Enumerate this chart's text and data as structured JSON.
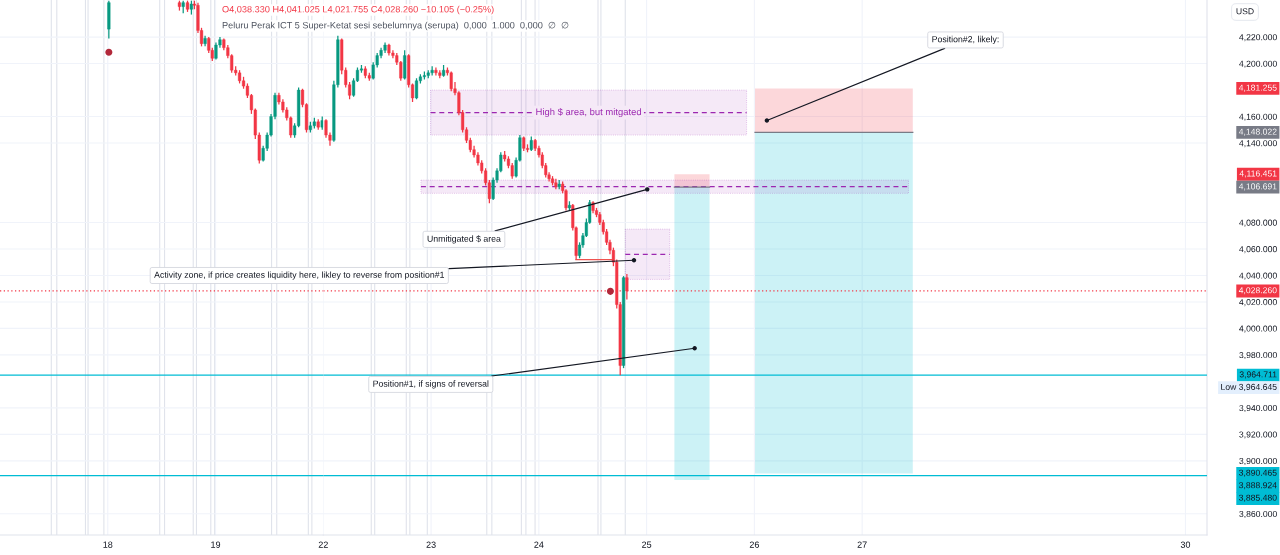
{
  "chart_data": [
    {
      "type": "candlestick",
      "title": "O4,038.330 H4,041.025 L4,021.755 C4,028.260 −10.105 (−0.25%)",
      "subtitle": "Peluru Perak ICT 5 Super-Ketat sesi sebelumnya (serupa)  0,000  1.000  0,000  ∅  ∅",
      "x": [
        18.01,
        18.665,
        18.7,
        18.74,
        18.776,
        18.804,
        18.837,
        18.87,
        18.903,
        18.937,
        18.97,
        19.004,
        19.041,
        19.077,
        19.114,
        19.15,
        19.187,
        19.223,
        19.26,
        19.296,
        19.333,
        19.369,
        19.406,
        19.442,
        19.479,
        19.515,
        19.552,
        19.588,
        19.625,
        19.661,
        19.698,
        19.734,
        19.771,
        19.807,
        19.844,
        19.88,
        19.917,
        19.953,
        19.99
      ],
      "ohlc": [
        [
          4226,
          4247.5,
          4219,
          4246
        ],
        [
          4246,
          4247.5,
          4240,
          4243
        ],
        [
          4243,
          4247.5,
          4238,
          4246
        ],
        [
          4246,
          4247.5,
          4239,
          4241
        ],
        [
          4241,
          4247.5,
          4237,
          4245
        ],
        [
          4245,
          4247.5,
          4241,
          4244
        ],
        [
          4244,
          4246,
          4223,
          4225
        ],
        [
          4225,
          4227,
          4213,
          4215
        ],
        [
          4215,
          4221,
          4213,
          4219
        ],
        [
          4219,
          4220,
          4208,
          4210
        ],
        [
          4210,
          4212,
          4202,
          4204
        ],
        [
          4204,
          4216,
          4203,
          4214
        ],
        [
          4214,
          4220,
          4212,
          4218
        ],
        [
          4218,
          4219,
          4210,
          4212
        ],
        [
          4212,
          4214,
          4204,
          4206
        ],
        [
          4206,
          4207,
          4193,
          4195
        ],
        [
          4195,
          4198,
          4191,
          4193
        ],
        [
          4193,
          4195,
          4185,
          4187
        ],
        [
          4187,
          4190,
          4181,
          4183
        ],
        [
          4183,
          4185,
          4174,
          4176
        ],
        [
          4176,
          4177,
          4162,
          4165
        ],
        [
          4165,
          4166,
          4143,
          4146
        ],
        [
          4146,
          4148,
          4124.5,
          4127
        ],
        [
          4127,
          4138,
          4126,
          4136
        ],
        [
          4136,
          4148,
          4134,
          4146
        ],
        [
          4146,
          4162,
          4145,
          4160
        ],
        [
          4160,
          4178,
          4158,
          4176
        ],
        [
          4176,
          4178,
          4169,
          4171
        ],
        [
          4171,
          4173,
          4163,
          4165
        ],
        [
          4165,
          4167,
          4157,
          4159
        ],
        [
          4159,
          4160,
          4144,
          4146
        ],
        [
          4146,
          4155,
          4144,
          4153
        ],
        [
          4153,
          4182,
          4152,
          4180
        ],
        [
          4180,
          4181,
          4167,
          4169
        ],
        [
          4169,
          4170,
          4148,
          4150
        ],
        [
          4150,
          4156,
          4148,
          4153
        ],
        [
          4153,
          4159,
          4151,
          4156
        ],
        [
          4156,
          4158,
          4150,
          4152
        ],
        [
          4152,
          4160,
          4150,
          4157
        ]
      ],
      "xlim": [
        17.0,
        20.0
      ],
      "xticks": [
        18,
        19
      ],
      "ylim": [
        3844,
        4248
      ],
      "yticks": [
        {
          "value": 4220,
          "label": null
        },
        {
          "value": 4200,
          "label": null
        },
        {
          "value": 4160,
          "label": null
        },
        {
          "value": 4140,
          "label": null
        },
        {
          "value": 4080,
          "label": null
        },
        {
          "value": 4060,
          "label": null
        },
        {
          "value": 4040,
          "label": null
        },
        {
          "value": 4020,
          "label": null
        },
        {
          "value": 4000,
          "label": null
        },
        {
          "value": 3980,
          "label": null
        },
        {
          "value": 3940,
          "label": null
        },
        {
          "value": 3920,
          "label": null
        },
        {
          "value": 3900,
          "label": null
        },
        {
          "value": 3860,
          "label": null
        }
      ],
      "tick_labels": "x",
      "grid": true,
      "series": [
        {
          "type": "scatter",
          "x": [
            18.01
          ],
          "values": [
            4208.5
          ],
          "color": "#b2283a",
          "marker": "circle"
        }
      ],
      "ref_lines": [
        {
          "axis": "y",
          "value": 4028.26,
          "color": "#f23645",
          "line_style": "dotted"
        },
        {
          "axis": "y",
          "value": 3964.711,
          "color": "#00bcd4",
          "line_style": "solid"
        },
        {
          "axis": "y",
          "value": 3888.924,
          "color": "#00bcd4",
          "line_style": "solid"
        },
        {
          "axis": "x",
          "value": 17.476,
          "color": "#e0e3eb"
        },
        {
          "axis": "x",
          "value": 17.527,
          "color": "#e0e3eb"
        },
        {
          "axis": "x",
          "value": 17.793,
          "color": "#e0e3eb"
        },
        {
          "axis": "x",
          "value": 17.817,
          "color": "#e0e3eb"
        },
        {
          "axis": "x",
          "value": 17.964,
          "color": "#e0e3eb"
        },
        {
          "axis": "x",
          "value": 18.482,
          "color": "#e0e3eb"
        },
        {
          "axis": "x",
          "value": 18.527,
          "color": "#e0e3eb"
        },
        {
          "axis": "x",
          "value": 18.793,
          "color": "#e0e3eb"
        },
        {
          "axis": "x",
          "value": 18.823,
          "color": "#e0e3eb"
        },
        {
          "axis": "x",
          "value": 18.956,
          "color": "#e0e3eb"
        },
        {
          "axis": "x",
          "value": 18.992,
          "color": "#e0e3eb"
        },
        {
          "axis": "x",
          "value": 19.52,
          "color": "#e0e3eb"
        },
        {
          "axis": "x",
          "value": 19.568,
          "color": "#e0e3eb"
        },
        {
          "axis": "x",
          "value": 19.861,
          "color": "#e0e3eb"
        },
        {
          "axis": "x",
          "value": 19.894,
          "color": "#e0e3eb"
        }
      ]
    },
    {
      "type": "candlestick",
      "x": [
        22.025,
        22.062,
        22.098,
        22.135,
        22.171,
        22.208,
        22.244,
        22.281,
        22.317,
        22.354,
        22.39,
        22.427,
        22.463,
        22.5,
        22.536,
        22.573,
        22.609,
        22.646,
        22.682,
        22.719,
        22.755,
        22.792,
        22.828,
        22.865,
        22.901,
        22.938,
        22.974,
        23.01,
        23.045,
        23.081,
        23.116,
        23.152,
        23.187,
        23.222,
        23.258,
        23.293,
        23.329,
        23.364,
        23.399,
        23.435,
        23.47,
        23.506,
        23.541,
        23.576,
        23.612,
        23.647,
        23.683,
        23.718,
        23.753,
        23.789,
        23.824,
        23.86,
        23.895,
        23.93,
        23.966,
        24.001,
        24.032,
        24.064,
        24.095,
        24.127,
        24.158,
        24.189,
        24.221,
        24.252,
        24.284,
        24.315,
        24.346,
        24.378,
        24.409,
        24.441,
        24.472,
        24.503,
        24.535,
        24.566,
        24.598,
        24.629,
        24.66,
        24.692,
        24.723,
        24.755,
        24.786,
        24.817
      ],
      "ohlc": [
        [
          4157,
          4158,
          4144,
          4146
        ],
        [
          4146,
          4148,
          4138,
          4142
        ],
        [
          4142,
          4187,
          4141,
          4184
        ],
        [
          4184,
          4221,
          4182,
          4218
        ],
        [
          4218,
          4219,
          4192,
          4195
        ],
        [
          4195,
          4197,
          4182,
          4184
        ],
        [
          4184,
          4186,
          4173,
          4176
        ],
        [
          4176,
          4189,
          4175,
          4187
        ],
        [
          4187,
          4197,
          4186,
          4195
        ],
        [
          4195,
          4199,
          4193,
          4196
        ],
        [
          4196,
          4198,
          4189,
          4191
        ],
        [
          4191,
          4193,
          4187,
          4189
        ],
        [
          4189,
          4201,
          4188,
          4199
        ],
        [
          4199,
          4208,
          4197,
          4206
        ],
        [
          4206,
          4212,
          4204,
          4210
        ],
        [
          4210,
          4216,
          4208,
          4214
        ],
        [
          4214,
          4215,
          4206,
          4208
        ],
        [
          4208,
          4210,
          4204,
          4206
        ],
        [
          4206,
          4208,
          4199,
          4201
        ],
        [
          4201,
          4202,
          4187,
          4189
        ],
        [
          4189,
          4210,
          4188,
          4206
        ],
        [
          4206,
          4207,
          4182,
          4184
        ],
        [
          4184,
          4185,
          4171,
          4174
        ],
        [
          4174,
          4189,
          4173,
          4187
        ],
        [
          4187,
          4192,
          4185,
          4190
        ],
        [
          4190,
          4194,
          4188,
          4191
        ],
        [
          4191,
          4195,
          4189,
          4193
        ],
        [
          4193,
          4198,
          4191,
          4195
        ],
        [
          4195,
          4197,
          4191,
          4193
        ],
        [
          4193,
          4195,
          4189,
          4191
        ],
        [
          4191,
          4199,
          4190,
          4195
        ],
        [
          4195,
          4197,
          4191,
          4193
        ],
        [
          4193,
          4194,
          4179,
          4181
        ],
        [
          4181,
          4186,
          4176,
          4178
        ],
        [
          4178,
          4179,
          4161,
          4163
        ],
        [
          4163,
          4165,
          4148,
          4150
        ],
        [
          4150,
          4152,
          4140,
          4142
        ],
        [
          4142,
          4144,
          4133,
          4135
        ],
        [
          4135,
          4138,
          4129,
          4131
        ],
        [
          4131,
          4133,
          4123,
          4125
        ],
        [
          4125,
          4127,
          4117,
          4119
        ],
        [
          4119,
          4121,
          4108,
          4110
        ],
        [
          4110,
          4112,
          4094.5,
          4098
        ],
        [
          4098,
          4114,
          4097,
          4112
        ],
        [
          4112,
          4121,
          4110,
          4119
        ],
        [
          4119,
          4133,
          4118,
          4131
        ],
        [
          4131,
          4134,
          4126,
          4128
        ],
        [
          4128,
          4130,
          4121,
          4123
        ],
        [
          4123,
          4125,
          4113,
          4115
        ],
        [
          4115,
          4129,
          4114,
          4127
        ],
        [
          4127,
          4146,
          4126,
          4144
        ],
        [
          4144,
          4145,
          4134,
          4136
        ],
        [
          4136,
          4139,
          4133,
          4135
        ],
        [
          4135,
          4145,
          4134,
          4142
        ],
        [
          4142,
          4143,
          4134,
          4136
        ],
        [
          4136,
          4138,
          4129,
          4131
        ],
        [
          4131,
          4133,
          4121,
          4123
        ],
        [
          4123,
          4125,
          4114,
          4116
        ],
        [
          4116,
          4118,
          4111,
          4113
        ],
        [
          4113,
          4115,
          4108,
          4110
        ],
        [
          4110,
          4113,
          4105,
          4107
        ],
        [
          4107,
          4112,
          4105,
          4109
        ],
        [
          4109,
          4111,
          4102,
          4104
        ],
        [
          4104,
          4105,
          4089,
          4091
        ],
        [
          4091,
          4096,
          4089,
          4093
        ],
        [
          4093,
          4094,
          4074,
          4076
        ],
        [
          4076,
          4077,
          4052,
          4055
        ],
        [
          4055,
          4065,
          4053,
          4063
        ],
        [
          4063,
          4072,
          4061,
          4070
        ],
        [
          4070,
          4083,
          4069,
          4080
        ],
        [
          4080,
          4097,
          4079,
          4095
        ],
        [
          4095,
          4096,
          4087,
          4089
        ],
        [
          4089,
          4091,
          4084,
          4086
        ],
        [
          4086,
          4088,
          4078,
          4080
        ],
        [
          4080,
          4082,
          4071,
          4073
        ],
        [
          4073,
          4075,
          4063,
          4065
        ],
        [
          4065,
          4067,
          4056,
          4059
        ],
        [
          4059,
          4061,
          4047,
          4050
        ],
        [
          4050,
          4052,
          4015,
          4018
        ],
        [
          4018,
          4020,
          3964.645,
          3972
        ],
        [
          3972,
          4039.5,
          3970,
          4038.33
        ],
        [
          4038.33,
          4041.025,
          4021.755,
          4028.26
        ]
      ],
      "xlim": [
        22.0,
        30.2
      ],
      "xticks": [
        22,
        23,
        24,
        25,
        26,
        27,
        30
      ],
      "ylim": [
        3844,
        4248
      ],
      "yticks": [
        {
          "value": 4220,
          "label": "4,220.000"
        },
        {
          "value": 4200,
          "label": "4,200.000"
        },
        {
          "value": 4160,
          "label": "4,160.000"
        },
        {
          "value": 4140,
          "label": "4,140.000"
        },
        {
          "value": 4080,
          "label": "4,080.000"
        },
        {
          "value": 4060,
          "label": "4,060.000"
        },
        {
          "value": 4040,
          "label": "4,040.000"
        },
        {
          "value": 4020,
          "label": "4,020.000"
        },
        {
          "value": 4000,
          "label": "4,000.000"
        },
        {
          "value": 3980,
          "label": "3,980.000"
        },
        {
          "value": 3940,
          "label": "3,940.000"
        },
        {
          "value": 3920,
          "label": "3,920.000"
        },
        {
          "value": 3900,
          "label": "3,900.000"
        },
        {
          "value": 3860,
          "label": "3,860.000"
        }
      ],
      "ylabel": "USD",
      "grid": true,
      "series": [
        {
          "type": "scatter",
          "x": [
            24.664
          ],
          "values": [
            4028
          ],
          "color": "#b2283a",
          "marker": "circle"
        },
        {
          "type": "line",
          "x": [
            24.344,
            24.68
          ],
          "values": [
            4052,
            4052
          ],
          "color": "#ef5350",
          "line_style": "solid"
        },
        {
          "type": "line",
          "name": "High $ area, but mitgated",
          "x": [
            22.995,
            25.928
          ],
          "values": [
            4163,
            4163
          ],
          "lower": [
            4146,
            4146
          ],
          "upper": [
            4180,
            4180
          ],
          "color": "#9c27b0",
          "line_style": "dashed"
        },
        {
          "type": "line",
          "x": [
            22.906,
            27.43
          ],
          "values": [
            4107,
            4107
          ],
          "lower": [
            4102,
            4102
          ],
          "upper": [
            4112,
            4112
          ],
          "color": "#9c27b0",
          "line_style": "dashed"
        },
        {
          "type": "line",
          "x": [
            24.802,
            25.214
          ],
          "values": [
            4056,
            4056
          ],
          "lower": [
            4037,
            4037
          ],
          "upper": [
            4075,
            4075
          ],
          "color": "#9c27b0",
          "line_style": "dashed"
        },
        {
          "type": "line",
          "x": [
            25.258,
            25.584
          ],
          "values": [
            null,
            null
          ],
          "lower": [
            4106.691,
            4106.691
          ],
          "upper": [
            4116.451,
            4116.451
          ],
          "color": "#f23645"
        },
        {
          "type": "line",
          "x": [
            25.258,
            25.584
          ],
          "values": [
            null,
            null
          ],
          "lower": [
            3885.48,
            3885.48
          ],
          "upper": [
            4106.691,
            4106.691
          ],
          "color": "#00bcd4"
        },
        {
          "type": "line",
          "x": [
            25.258,
            25.584
          ],
          "values": [
            4106.691,
            4106.691
          ],
          "color": "#787b86",
          "line_style": "solid"
        },
        {
          "type": "line",
          "x": [
            26.006,
            27.47
          ],
          "values": [
            null,
            null
          ],
          "lower": [
            4148.022,
            4148.022
          ],
          "upper": [
            4181.255,
            4181.255
          ],
          "color": "#f23645"
        },
        {
          "type": "line",
          "x": [
            26.006,
            27.47
          ],
          "values": [
            null,
            null
          ],
          "lower": [
            3890.465,
            3890.465
          ],
          "upper": [
            4148.022,
            4148.022
          ],
          "color": "#00bcd4"
        },
        {
          "type": "line",
          "x": [
            26.006,
            27.47
          ],
          "values": [
            4148.022,
            4148.022
          ],
          "color": "#787b86",
          "line_style": "solid"
        }
      ],
      "ref_lines": [
        {
          "axis": "y",
          "value": 4028.26,
          "color": "#f23645",
          "line_style": "dotted"
        },
        {
          "axis": "y",
          "value": 3964.711,
          "color": "#00bcd4",
          "line_style": "solid"
        },
        {
          "axis": "y",
          "value": 3888.924,
          "color": "#00bcd4",
          "line_style": "solid"
        },
        {
          "axis": "x",
          "value": 22.445,
          "color": "#e0e3eb"
        },
        {
          "axis": "x",
          "value": 22.477,
          "color": "#e0e3eb"
        },
        {
          "axis": "x",
          "value": 22.77,
          "color": "#e0e3eb"
        },
        {
          "axis": "x",
          "value": 22.803,
          "color": "#e0e3eb"
        },
        {
          "axis": "x",
          "value": 22.965,
          "color": "#e0e3eb"
        },
        {
          "axis": "x",
          "value": 23.517,
          "color": "#e0e3eb"
        },
        {
          "axis": "x",
          "value": 23.564,
          "color": "#e0e3eb"
        },
        {
          "axis": "x",
          "value": 23.838,
          "color": "#e0e3eb"
        },
        {
          "axis": "x",
          "value": 23.88,
          "color": "#e0e3eb"
        },
        {
          "axis": "x",
          "value": 23.965,
          "color": "#e0e3eb"
        },
        {
          "axis": "x",
          "value": 24.549,
          "color": "#e0e3eb"
        },
        {
          "axis": "x",
          "value": 24.576,
          "color": "#e0e3eb"
        },
        {
          "axis": "x",
          "value": 24.802,
          "color": "#e0e3eb"
        }
      ],
      "annotations": [
        {
          "text": "Position#2, likely:",
          "x": 26.116,
          "y": 4157
        },
        {
          "text": "Unmitigated $ area",
          "x": 25.006,
          "y": 4105
        },
        {
          "text": "Activity zone, if price creates liquidity here, likley to reverse from position#1",
          "x": 24.883,
          "y": 4051.5
        },
        {
          "text": "Position#1, if signs of reversal",
          "x": 25.446,
          "y": 3985
        },
        "4,181.255",
        "4,148.022",
        "4,116.451",
        "4,106.691",
        "4,028.260",
        "3,964.711",
        "Low 3,964.645",
        "3,890.465",
        "3,888.924",
        "3,885.480"
      ]
    }
  ]
}
